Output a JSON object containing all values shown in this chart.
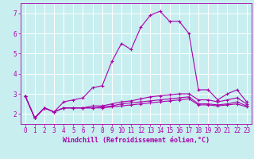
{
  "title": "",
  "xlabel": "Windchill (Refroidissement éolien,°C)",
  "ylabel": "",
  "background_color": "#c8eef0",
  "grid_color": "#ffffff",
  "line_color": "#aa00aa",
  "xlim": [
    -0.5,
    23.5
  ],
  "ylim": [
    1.5,
    7.5
  ],
  "yticks": [
    2,
    3,
    4,
    5,
    6,
    7
  ],
  "xticks": [
    0,
    1,
    2,
    3,
    4,
    5,
    6,
    7,
    8,
    9,
    10,
    11,
    12,
    13,
    14,
    15,
    16,
    17,
    18,
    19,
    20,
    21,
    22,
    23
  ],
  "series": [
    [
      2.9,
      1.8,
      2.3,
      2.1,
      2.6,
      2.7,
      2.8,
      3.3,
      3.4,
      4.6,
      5.5,
      5.2,
      6.3,
      6.9,
      7.1,
      6.6,
      6.6,
      6.0,
      3.2,
      3.2,
      2.7,
      3.0,
      3.2,
      2.6
    ],
    [
      2.9,
      1.8,
      2.3,
      2.1,
      2.3,
      2.3,
      2.3,
      2.4,
      2.4,
      2.5,
      2.6,
      2.65,
      2.75,
      2.85,
      2.9,
      2.95,
      3.0,
      3.0,
      2.7,
      2.7,
      2.6,
      2.7,
      2.8,
      2.5
    ],
    [
      2.9,
      1.8,
      2.3,
      2.1,
      2.3,
      2.3,
      2.3,
      2.3,
      2.35,
      2.4,
      2.5,
      2.55,
      2.6,
      2.65,
      2.7,
      2.75,
      2.8,
      2.85,
      2.5,
      2.5,
      2.45,
      2.5,
      2.6,
      2.4
    ],
    [
      2.9,
      1.8,
      2.3,
      2.1,
      2.3,
      2.3,
      2.3,
      2.3,
      2.3,
      2.35,
      2.4,
      2.45,
      2.5,
      2.55,
      2.6,
      2.65,
      2.7,
      2.75,
      2.45,
      2.45,
      2.4,
      2.45,
      2.5,
      2.35
    ]
  ],
  "marker": "+",
  "markersize": 3,
  "linewidth": 0.8,
  "font_size_x": 5.0,
  "font_size_y": 5.5,
  "font_size_xlabel": 6.0
}
